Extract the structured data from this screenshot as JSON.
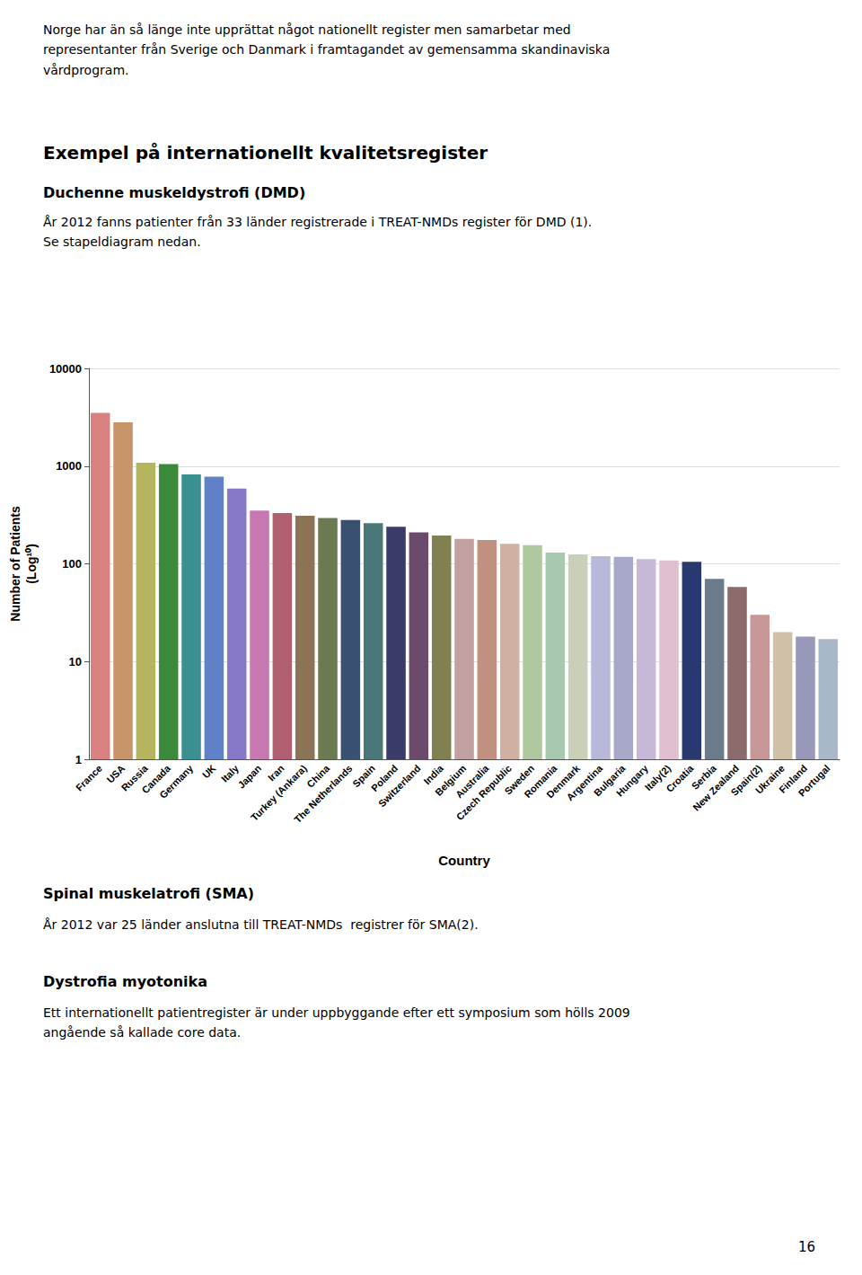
{
  "chart_data": {
    "type": "bar",
    "xlabel": "Country",
    "ylabel": "Number of Patients\n(Log¹⁰)",
    "categories": [
      "France",
      "USA",
      "Russia",
      "Canada",
      "Germany",
      "UK",
      "Italy",
      "Japan",
      "Iran",
      "Turkey (Ankara)",
      "China",
      "The Netherlands",
      "Spain",
      "Poland",
      "Switzerland",
      "India",
      "Belgium",
      "Australia",
      "Czech Republic",
      "Sweden",
      "Romania",
      "Denmark",
      "Argentina",
      "Bulgaria",
      "Hungary",
      "Italy(2)",
      "Croatia",
      "Serbia",
      "New Zealand",
      "Spain(2)",
      "Ukraine",
      "Finland",
      "Portugal"
    ],
    "values": [
      3500,
      2800,
      1080,
      1050,
      820,
      780,
      590,
      350,
      330,
      310,
      295,
      280,
      260,
      240,
      210,
      195,
      180,
      175,
      160,
      155,
      130,
      125,
      120,
      118,
      112,
      108,
      105,
      70,
      58,
      30,
      20,
      18,
      17
    ],
    "colors": [
      "#D98080",
      "#C8956B",
      "#B5B560",
      "#3A8A3A",
      "#3A9090",
      "#6080C8",
      "#8878C8",
      "#C878B0",
      "#B06070",
      "#8B7355",
      "#6B7A50",
      "#3A5070",
      "#4A7878",
      "#3A3A6B",
      "#6B4A6B",
      "#808050",
      "#C0A0A0",
      "#C09080",
      "#D0B0A0",
      "#B0C8A0",
      "#A8C8B0",
      "#C8D0B8",
      "#B8B8D8",
      "#A8A8C8",
      "#C8B8D8",
      "#E0C0D0",
      "#283870",
      "#6B7B8B",
      "#8B6B6B",
      "#C89898",
      "#D0C0A8",
      "#9898B8",
      "#A8B8C8"
    ],
    "log": "y",
    "ylim": [
      1,
      10000
    ],
    "yticks": [
      1,
      10,
      100,
      1000,
      10000
    ],
    "grid": true,
    "annotations": [
      "Norge har än så länge inte upprättat något nationellt register men samarbetar med\nrepresentanter från Sverige och Danmark i framtagandet av gemensamma skandinaviska\nvårdprogram.",
      "Exempel på internationellt kvalitetsregister",
      "Duchenne muskeldystrofi (DMD)",
      "År 2012 fanns patienter från 33 länder registrerade i TREAT-NMDs register för DMD (1).\nSe stapeldiagram nedan.",
      "Spinal muskelatrofi (SMA)",
      "År 2012 var 25 länder anslutna till TREAT-NMDs  registrer för SMA(2).",
      "Dystrofia myotonika",
      "Ett internationellt patientregister är under uppbyggande efter ett symposium som hölls 2009\nangående så kallade core data.",
      "16"
    ]
  }
}
